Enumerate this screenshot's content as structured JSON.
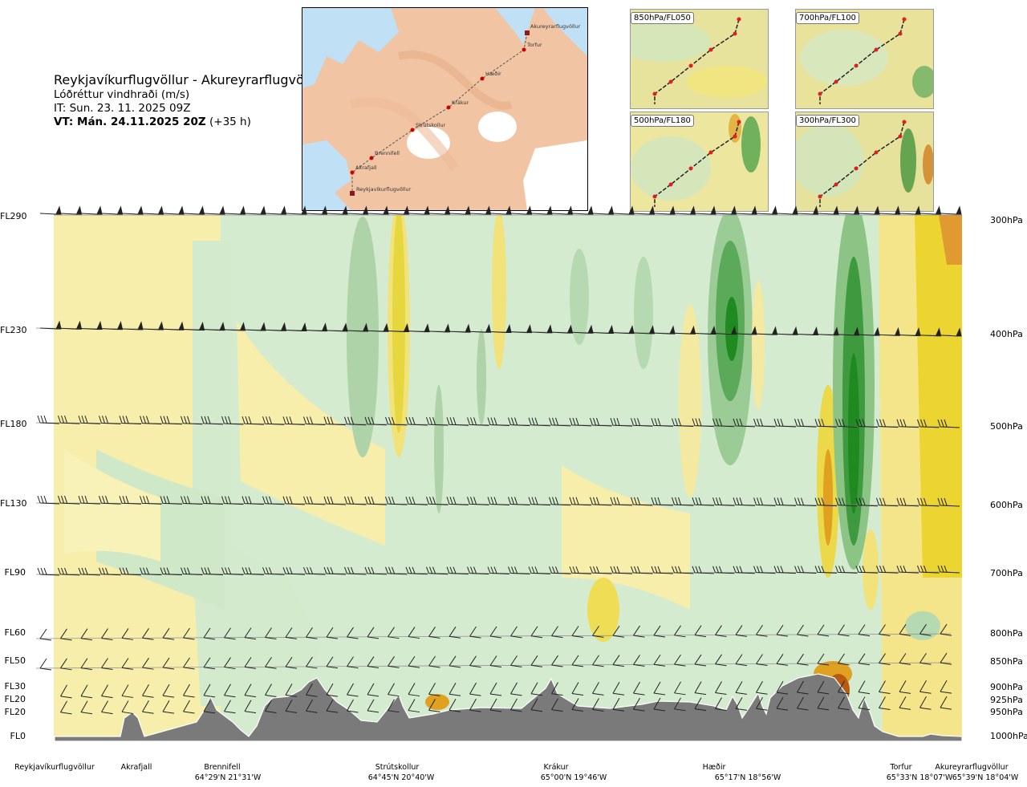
{
  "header": {
    "title": "Reykjavíkurflugvöllur - Akureyrarflugvöllur",
    "subtitle": "Lóðréttur vindhraði (m/s)",
    "it_line": "IT: Sun. 23. 11. 2025 09Z",
    "vt_bold": "VT: Mán. 24.11.2025 20Z",
    "vt_offset": "(+35 h)"
  },
  "route_map": {
    "points": [
      "Akureyrarflugvöllur",
      "Torfur",
      "Hæðir",
      "Krákur",
      "Strútskollur",
      "Brennifell",
      "Akrafjall",
      "Reykjavíkurflugvöllur"
    ]
  },
  "level_maps": [
    {
      "label": "850hPa/FL050"
    },
    {
      "label": "700hPa/FL100"
    },
    {
      "label": "500hPa/FL180"
    },
    {
      "label": "300hPa/FL300"
    }
  ],
  "chart_data": {
    "type": "heatmap",
    "title": "Lóðréttur vindhraði (m/s)",
    "y_levels": [
      {
        "fl": "FL290",
        "pressure": "300hPa"
      },
      {
        "fl": "FL230",
        "pressure": "400hPa"
      },
      {
        "fl": "FL180",
        "pressure": "500hPa"
      },
      {
        "fl": "FL130",
        "pressure": "600hPa"
      },
      {
        "fl": "FL90",
        "pressure": "700hPa"
      },
      {
        "fl": "FL60",
        "pressure": "800hPa"
      },
      {
        "fl": "FL50",
        "pressure": "850hPa"
      },
      {
        "fl": "FL30",
        "pressure": "900hPa"
      },
      {
        "fl": "FL20",
        "pressure": "925hPa"
      },
      {
        "fl": "FL20",
        "pressure": "950hPa"
      },
      {
        "fl": "FL0",
        "pressure": "1000hPa"
      }
    ],
    "x_points": [
      {
        "name": "Reykjavíkurflugvöllur",
        "coord": ""
      },
      {
        "name": "Akrafjall",
        "coord": ""
      },
      {
        "name": "Brennifell",
        "coord": "64°29'N 21°31'W"
      },
      {
        "name": "Strútskollur",
        "coord": "64°45'N 20°40'W"
      },
      {
        "name": "Krákur",
        "coord": "65°00'N 19°46'W"
      },
      {
        "name": "Hæðir",
        "coord": "65°17'N 18°56'W"
      },
      {
        "name": "Torfur",
        "coord": "65°33'N 18°07'W"
      },
      {
        "name": "Akureyrarflugvöllur",
        "coord": "65°39'N 18°04'W"
      }
    ],
    "colors": {
      "strong_down": "#1f8a1f",
      "down": "#5aaa5a",
      "weak_down": "#a8d5a8",
      "very_weak_down": "#cfe9cf",
      "neutral": "#fafadf",
      "weak_up": "#f6efa9",
      "up": "#ecd94a",
      "strong_up": "#e0a020",
      "very_strong_up": "#b85a10",
      "terrain": "#7a7a7a"
    }
  }
}
